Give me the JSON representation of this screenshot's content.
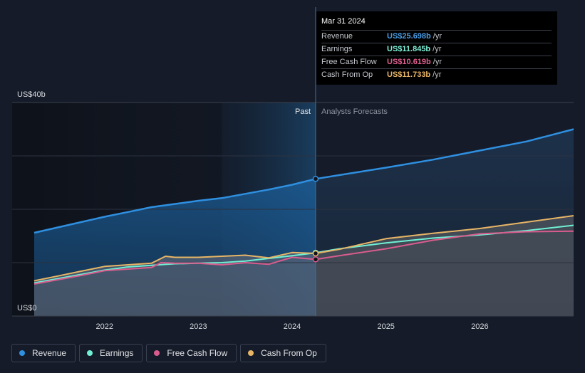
{
  "tooltip": {
    "date": "Mar 31 2024",
    "rows": [
      {
        "name": "Revenue",
        "value": "US$25.698b",
        "unit": "/yr",
        "color": "#4a9ee6"
      },
      {
        "name": "Earnings",
        "value": "US$11.845b",
        "unit": "/yr",
        "color": "#7ff2d8"
      },
      {
        "name": "Free Cash Flow",
        "value": "US$10.619b",
        "unit": "/yr",
        "color": "#e0608f"
      },
      {
        "name": "Cash From Op",
        "value": "US$11.733b",
        "unit": "/yr",
        "color": "#e8b566"
      }
    ]
  },
  "legend": [
    {
      "label": "Revenue",
      "color": "#2f8fe0"
    },
    {
      "label": "Earnings",
      "color": "#6ff0d4"
    },
    {
      "label": "Free Cash Flow",
      "color": "#d95c8d"
    },
    {
      "label": "Cash From Op",
      "color": "#e8b566"
    }
  ],
  "chart_data": {
    "type": "line",
    "ylabel_top": "US$40b",
    "ylabel_bottom": "US$0",
    "ylim": [
      0,
      40
    ],
    "xlim": [
      2021.25,
      2027.0
    ],
    "x_ticks": [
      2022,
      2023,
      2024,
      2025,
      2026
    ],
    "x_tick_labels": [
      "2022",
      "2023",
      "2024",
      "2025",
      "2026"
    ],
    "past_label": "Past",
    "forecast_label": "Analysts Forecasts",
    "divider_x": 2024.25,
    "grid": true,
    "series": [
      {
        "name": "Revenue",
        "color": "#2f8fe0",
        "points": [
          [
            2021.25,
            15.6
          ],
          [
            2021.5,
            16.6
          ],
          [
            2021.75,
            17.6
          ],
          [
            2022.0,
            18.6
          ],
          [
            2022.25,
            19.5
          ],
          [
            2022.5,
            20.4
          ],
          [
            2022.75,
            21.0
          ],
          [
            2023.0,
            21.6
          ],
          [
            2023.25,
            22.1
          ],
          [
            2023.5,
            22.9
          ],
          [
            2023.75,
            23.7
          ],
          [
            2024.0,
            24.6
          ],
          [
            2024.25,
            25.7
          ],
          [
            2024.5,
            26.4
          ],
          [
            2025.0,
            27.8
          ],
          [
            2025.5,
            29.3
          ],
          [
            2026.0,
            31.0
          ],
          [
            2026.5,
            32.7
          ],
          [
            2027.0,
            35.0
          ]
        ]
      },
      {
        "name": "Earnings",
        "color": "#6ff0d4",
        "points": [
          [
            2021.25,
            6.2
          ],
          [
            2021.5,
            7.0
          ],
          [
            2021.75,
            7.8
          ],
          [
            2022.0,
            8.6
          ],
          [
            2022.25,
            9.2
          ],
          [
            2022.5,
            9.5
          ],
          [
            2022.75,
            9.8
          ],
          [
            2023.0,
            9.9
          ],
          [
            2023.25,
            10.0
          ],
          [
            2023.5,
            10.3
          ],
          [
            2023.75,
            10.8
          ],
          [
            2024.0,
            11.3
          ],
          [
            2024.25,
            11.85
          ],
          [
            2024.5,
            12.6
          ],
          [
            2025.0,
            13.7
          ],
          [
            2025.5,
            14.6
          ],
          [
            2026.0,
            15.2
          ],
          [
            2026.5,
            16.0
          ],
          [
            2027.0,
            17.0
          ]
        ]
      },
      {
        "name": "Free Cash Flow",
        "color": "#d95c8d",
        "points": [
          [
            2021.25,
            6.0
          ],
          [
            2021.5,
            6.8
          ],
          [
            2021.75,
            7.6
          ],
          [
            2022.0,
            8.5
          ],
          [
            2022.25,
            8.8
          ],
          [
            2022.5,
            9.1
          ],
          [
            2022.6,
            10.0
          ],
          [
            2022.75,
            9.9
          ],
          [
            2023.0,
            9.9
          ],
          [
            2023.25,
            9.6
          ],
          [
            2023.5,
            10.0
          ],
          [
            2023.75,
            9.7
          ],
          [
            2024.0,
            11.0
          ],
          [
            2024.25,
            10.62
          ],
          [
            2024.5,
            11.3
          ],
          [
            2025.0,
            12.6
          ],
          [
            2025.5,
            14.2
          ],
          [
            2026.0,
            15.4
          ],
          [
            2026.5,
            15.8
          ],
          [
            2027.0,
            15.9
          ]
        ]
      },
      {
        "name": "Cash From Op",
        "color": "#e8b566",
        "points": [
          [
            2021.25,
            6.6
          ],
          [
            2021.5,
            7.5
          ],
          [
            2021.75,
            8.4
          ],
          [
            2022.0,
            9.3
          ],
          [
            2022.25,
            9.6
          ],
          [
            2022.5,
            9.9
          ],
          [
            2022.65,
            11.2
          ],
          [
            2022.75,
            11.0
          ],
          [
            2023.0,
            11.0
          ],
          [
            2023.25,
            11.2
          ],
          [
            2023.5,
            11.4
          ],
          [
            2023.75,
            10.9
          ],
          [
            2024.0,
            11.9
          ],
          [
            2024.25,
            11.73
          ],
          [
            2024.5,
            12.5
          ],
          [
            2025.0,
            14.5
          ],
          [
            2025.5,
            15.5
          ],
          [
            2026.0,
            16.4
          ],
          [
            2026.5,
            17.6
          ],
          [
            2027.0,
            18.8
          ]
        ]
      }
    ]
  }
}
